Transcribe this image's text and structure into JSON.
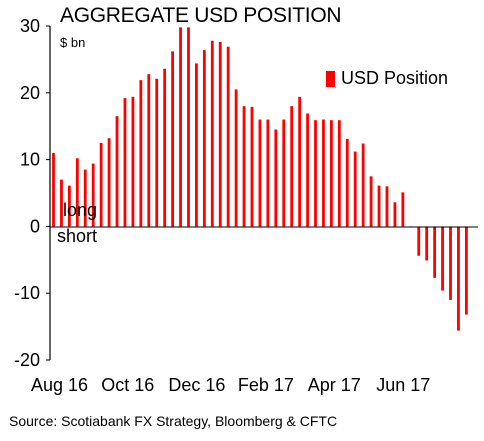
{
  "chart_data": {
    "type": "bar",
    "title": "AGGREGATE USD POSITION",
    "unit_label": "$ bn",
    "legend": {
      "label": "USD Position",
      "color": "#ff0000",
      "placement": "top-right"
    },
    "annotations": {
      "above_zero": "long",
      "below_zero": "short"
    },
    "source": "Source: Scotiabank FX Strategy, Bloomberg & CFTC",
    "ylim": [
      -20,
      30
    ],
    "yticks": [
      30,
      20,
      10,
      0,
      -10,
      -20
    ],
    "x_tick_labels": [
      "Aug 16",
      "Oct 16",
      "Dec 16",
      "Feb 17",
      "Apr 17",
      "Jun 17"
    ],
    "x_tick_positions": [
      0,
      8.6,
      17.3,
      26,
      34.6,
      43.3
    ],
    "grid": false,
    "bar_color": "#ff0000",
    "values": [
      11.0,
      7.0,
      6.1,
      10.2,
      8.5,
      9.4,
      12.5,
      13.2,
      16.5,
      19.2,
      19.4,
      21.9,
      22.8,
      22.1,
      23.6,
      26.2,
      29.8,
      29.8,
      24.4,
      26.4,
      27.8,
      27.6,
      26.9,
      20.5,
      18.0,
      17.9,
      16.0,
      16.0,
      14.5,
      16.0,
      18.0,
      19.4,
      16.9,
      15.9,
      16.0,
      15.9,
      15.9,
      13.1,
      11.2,
      12.4,
      7.5,
      6.1,
      6.0,
      3.6,
      5.1,
      0.0,
      -4.4,
      -5.1,
      -7.7,
      -9.6,
      -11.0,
      -15.6,
      -13.2
    ]
  }
}
